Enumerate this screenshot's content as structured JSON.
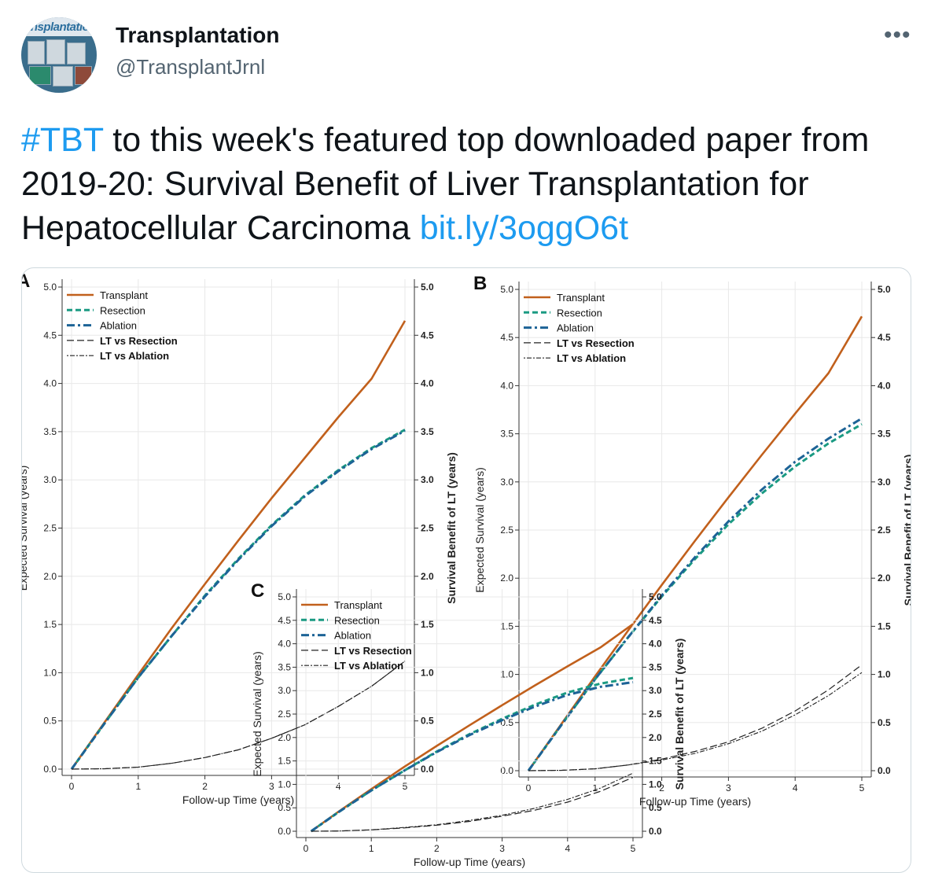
{
  "account": {
    "name": "Transplantation",
    "handle": "@TransplantJrnl",
    "avatar_text": "ansplantatio"
  },
  "menu": {
    "more_icon": "more-horizontal-icon",
    "more_label": "•••"
  },
  "tweet": {
    "hashtag": "#TBT",
    "text": " to this week's featured top downloaded paper from 2019-20: Survival Benefit of Liver Transplantation for Hepatocellular Carcinoma ",
    "link": "bit.ly/3oggO6t"
  },
  "colors": {
    "transplant": "#c1601c",
    "resection": "#1a9a82",
    "ablation": "#1d6396",
    "benefit": "#222222",
    "link": "#1d9bf0"
  },
  "chart_data": [
    {
      "type": "line",
      "panel_label": "A",
      "xlabel": "Follow-up Time (years)",
      "ylabel": "Expected Survival (years)",
      "y2label": "Survival Benefit of LT (years)",
      "xlim": [
        0,
        5
      ],
      "ylim": [
        0,
        5
      ],
      "y2lim": [
        0,
        5
      ],
      "xticks": [
        "0",
        "1",
        "2",
        "3",
        "4",
        "5"
      ],
      "yticks": [
        "0.0",
        "0.5",
        "1.0",
        "1.5",
        "2.0",
        "2.5",
        "3.0",
        "3.5",
        "4.0",
        "4.5",
        "5.0"
      ],
      "legend_position": "top-left",
      "x": [
        0,
        0.5,
        1,
        1.5,
        2,
        2.5,
        3,
        3.5,
        4,
        4.5,
        5
      ],
      "series": [
        {
          "name": "Transplant",
          "style": "solid",
          "values": [
            0,
            0.49,
            0.98,
            1.46,
            1.92,
            2.37,
            2.81,
            3.23,
            3.65,
            4.05,
            4.65
          ]
        },
        {
          "name": "Resection",
          "style": "dash",
          "values": [
            0,
            0.48,
            0.95,
            1.38,
            1.8,
            2.18,
            2.53,
            2.84,
            3.1,
            3.33,
            3.52
          ]
        },
        {
          "name": "Ablation",
          "style": "dashdot",
          "values": [
            0,
            0.48,
            0.95,
            1.38,
            1.79,
            2.17,
            2.52,
            2.83,
            3.09,
            3.32,
            3.51
          ]
        },
        {
          "name": "LT vs Resection",
          "style": "longdash",
          "values": [
            0,
            0.004,
            0.02,
            0.06,
            0.12,
            0.2,
            0.32,
            0.46,
            0.65,
            0.86,
            1.12
          ]
        },
        {
          "name": "LT vs Ablation",
          "style": "dot",
          "values": [
            0,
            0.004,
            0.02,
            0.06,
            0.12,
            0.2,
            0.32,
            0.46,
            0.65,
            0.86,
            1.12
          ]
        }
      ]
    },
    {
      "type": "line",
      "panel_label": "B",
      "xlabel": "Follow-up Time (years)",
      "ylabel": "Expected Survival (years)",
      "y2label": "Survival Benefit of LT (years)",
      "xlim": [
        0,
        5
      ],
      "ylim": [
        0,
        5
      ],
      "y2lim": [
        0,
        5
      ],
      "xticks": [
        "0",
        "1",
        "2",
        "3",
        "4",
        "5"
      ],
      "yticks": [
        "0.0",
        "0.5",
        "1.0",
        "1.5",
        "2.0",
        "2.5",
        "3.0",
        "3.5",
        "4.0",
        "4.5",
        "5.0"
      ],
      "legend_position": "top-left",
      "x": [
        0,
        0.5,
        1,
        1.5,
        2,
        2.5,
        3,
        3.5,
        4,
        4.5,
        5
      ],
      "series": [
        {
          "name": "Transplant",
          "style": "solid",
          "values": [
            0,
            0.49,
            0.98,
            1.46,
            1.93,
            2.39,
            2.84,
            3.28,
            3.71,
            4.13,
            4.72
          ]
        },
        {
          "name": "Resection",
          "style": "dash",
          "values": [
            0,
            0.48,
            0.95,
            1.39,
            1.81,
            2.2,
            2.56,
            2.88,
            3.16,
            3.4,
            3.6
          ]
        },
        {
          "name": "Ablation",
          "style": "dashdot",
          "values": [
            0,
            0.48,
            0.95,
            1.39,
            1.82,
            2.22,
            2.59,
            2.92,
            3.21,
            3.45,
            3.66
          ]
        },
        {
          "name": "LT vs Resection",
          "style": "longdash",
          "values": [
            0,
            0.004,
            0.02,
            0.06,
            0.12,
            0.2,
            0.3,
            0.44,
            0.62,
            0.84,
            1.1
          ]
        },
        {
          "name": "LT vs Ablation",
          "style": "dot",
          "values": [
            0,
            0.004,
            0.02,
            0.06,
            0.11,
            0.18,
            0.28,
            0.41,
            0.58,
            0.78,
            1.02
          ]
        }
      ]
    },
    {
      "type": "line",
      "panel_label": "C",
      "xlabel": "Follow-up Time (years)",
      "ylabel": "Expected Survival (years)",
      "y2label": "Survival Benefit of LT (years)",
      "xlim": [
        0,
        5
      ],
      "ylim": [
        0,
        5
      ],
      "y2lim": [
        0,
        5
      ],
      "xticks": [
        "0",
        "1",
        "2",
        "3",
        "4",
        "5"
      ],
      "yticks": [
        "0.0",
        "0.5",
        "1.0",
        "1.5",
        "2.0",
        "2.5",
        "3.0",
        "3.5",
        "4.0",
        "4.5",
        "5.0"
      ],
      "legend_position": "top-left",
      "x": [
        0.08,
        0.5,
        1,
        1.5,
        2,
        2.5,
        3,
        3.5,
        4,
        4.5,
        5
      ],
      "series": [
        {
          "name": "Transplant",
          "style": "solid",
          "values": [
            0,
            0.42,
            0.9,
            1.37,
            1.82,
            2.26,
            2.69,
            3.11,
            3.52,
            3.92,
            4.42
          ]
        },
        {
          "name": "Resection",
          "style": "dash",
          "values": [
            0,
            0.41,
            0.87,
            1.29,
            1.7,
            2.07,
            2.4,
            2.7,
            2.96,
            3.15,
            3.27
          ]
        },
        {
          "name": "Ablation",
          "style": "dashdot",
          "values": [
            0,
            0.41,
            0.87,
            1.29,
            1.69,
            2.05,
            2.37,
            2.66,
            2.91,
            3.08,
            3.18
          ]
        },
        {
          "name": "LT vs Resection",
          "style": "longdash",
          "values": [
            0,
            0.005,
            0.03,
            0.07,
            0.13,
            0.21,
            0.32,
            0.45,
            0.62,
            0.85,
            1.15
          ]
        },
        {
          "name": "LT vs Ablation",
          "style": "dot",
          "values": [
            0,
            0.005,
            0.03,
            0.08,
            0.14,
            0.23,
            0.34,
            0.49,
            0.68,
            0.92,
            1.24
          ]
        }
      ]
    }
  ]
}
